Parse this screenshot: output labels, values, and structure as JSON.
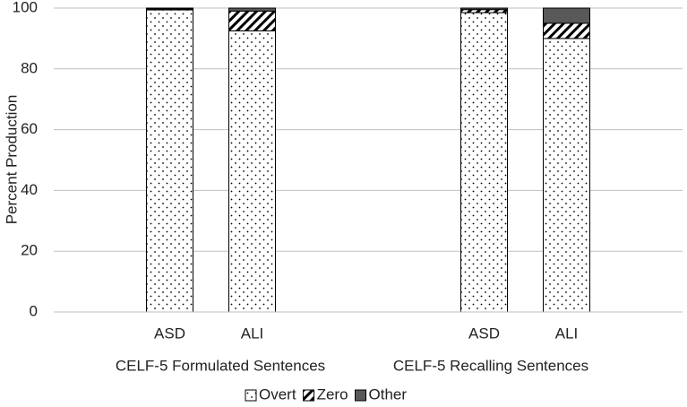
{
  "chart_data": {
    "type": "stacked-bar",
    "y_label": "Percent Production",
    "groups": [
      "CELF-5 Formulated Sentences",
      "CELF-5 Recalling Sentences"
    ],
    "categories": [
      "ASD",
      "ALI",
      "ASD",
      "ALI"
    ],
    "series": [
      {
        "name": "Overt",
        "pattern": "dots",
        "color": "#000000",
        "values": [
          99.4,
          92.5,
          98.5,
          90
        ]
      },
      {
        "name": "Zero",
        "pattern": "hatch",
        "color": "#000000",
        "values": [
          0.3,
          6.5,
          1.0,
          5
        ]
      },
      {
        "name": "Other",
        "pattern": "solid",
        "color": "#595959",
        "values": [
          0.3,
          1.0,
          0.5,
          5
        ]
      }
    ],
    "ylim": [
      0,
      100
    ],
    "yticks": [
      0,
      20,
      40,
      60,
      80,
      100
    ],
    "grid": true,
    "legend": "bottom"
  }
}
